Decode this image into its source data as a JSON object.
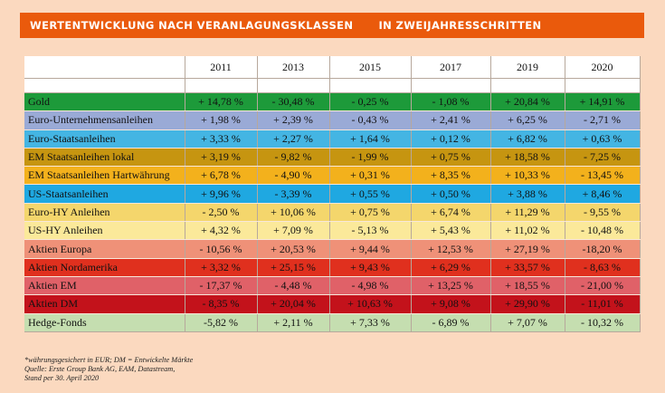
{
  "banner": {
    "title": "WERTENTWICKLUNG NACH VERANLAGUNGSKLASSEN",
    "subtitle": "IN ZWEIJAHRESSCHRITTEN",
    "color": "#ea5a0c"
  },
  "table": {
    "years": [
      "2011",
      "2013",
      "2015",
      "2017",
      "2019",
      "2020"
    ],
    "rows": [
      {
        "name": "Gold",
        "color": "#1d9a3a",
        "values": [
          "+ 14,78 %",
          "- 30,48 %",
          "- 0,25 %",
          "- 1,08 %",
          "+ 20,84 %",
          "+ 14,91 %"
        ]
      },
      {
        "name": "Euro-Unternehmensanleihen",
        "color": "#9aaad6",
        "values": [
          "+ 1,98 %",
          "+ 2,39 %",
          "- 0,43 %",
          "+ 2,41 %",
          "+ 6,25 %",
          "- 2,71 %"
        ]
      },
      {
        "name": "Euro-Staatsanleihen",
        "color": "#44b5e3",
        "values": [
          "+ 3,33 %",
          "+ 2,27 %",
          "+ 1,64 %",
          "+ 0,12 %",
          "+ 6,82 %",
          "+ 0,63 %"
        ]
      },
      {
        "name": "EM Staatsanleihen lokal",
        "color": "#c69510",
        "values": [
          "+ 3,19 %",
          "- 9,82 %",
          "- 1,99 %",
          "+ 0,75 %",
          "+ 18,58 %",
          "- 7,25 %"
        ]
      },
      {
        "name": "EM Staatsanleihen Hartwährung",
        "color": "#f3b11c",
        "values": [
          "+ 6,78 %",
          "- 4,90 %",
          "+ 0,31 %",
          "+ 8,35 %",
          "+ 10,33 %",
          "- 13,45 %"
        ]
      },
      {
        "name": "US-Staatsanleihen",
        "color": "#1fa8e1",
        "values": [
          "+ 9,96 %",
          "- 3,39 %",
          "+ 0,55 %",
          "+ 0,50 %",
          "+ 3,88 %",
          "+ 8,46 %"
        ]
      },
      {
        "name": "Euro-HY Anleihen",
        "color": "#f4d66c",
        "values": [
          "- 2,50 %",
          "+ 10,06 %",
          "+ 0,75 %",
          "+ 6,74 %",
          "+ 11,29 %",
          "- 9,55 %"
        ]
      },
      {
        "name": "US-HY Anleihen",
        "color": "#fbe99a",
        "values": [
          "+ 4,32 %",
          "+ 7,09 %",
          "- 5,13 %",
          "+ 5,43 %",
          "+ 11,02 %",
          "- 10,48 %"
        ]
      },
      {
        "name": "Aktien Europa",
        "color": "#ef9178",
        "values": [
          "- 10,56 %",
          "+ 20,53 %",
          "+ 9,44 %",
          "+ 12,53 %",
          "+ 27,19 %",
          "-18,20 %"
        ]
      },
      {
        "name": "Aktien Nordamerika",
        "color": "#e0301e",
        "values": [
          "+ 3,32 %",
          "+ 25,15 %",
          "+ 9,43 %",
          "+ 6,29 %",
          "+ 33,57 %",
          "- 8,63 %"
        ]
      },
      {
        "name": "Aktien EM",
        "color": "#e06168",
        "values": [
          "- 17,37 %",
          "- 4,48 %",
          "- 4,98 %",
          "+ 13,25 %",
          "+ 18,55 %",
          "- 21,00 %"
        ]
      },
      {
        "name": "Aktien DM",
        "color": "#c3121b",
        "values": [
          "- 8,35 %",
          "+ 20,04 %",
          "+ 10,63 %",
          "+ 9,08 %",
          "+ 29,90 %",
          "- 11,01 %"
        ]
      },
      {
        "name": "Hedge-Fonds",
        "color": "#c5deb0",
        "values": [
          "-5,82 %",
          "+ 2,11 %",
          "+ 7,33 %",
          "- 6,89 %",
          "+ 7,07 %",
          "- 10,32 %"
        ]
      }
    ]
  },
  "footnote": {
    "line1": "*währungsgesichert in EUR; DM = Entwickelte Märkte",
    "line2": "Quelle: Erste Group Bank AG, EAM, Datastream,",
    "line3": "Stand per 30. April 2020"
  }
}
